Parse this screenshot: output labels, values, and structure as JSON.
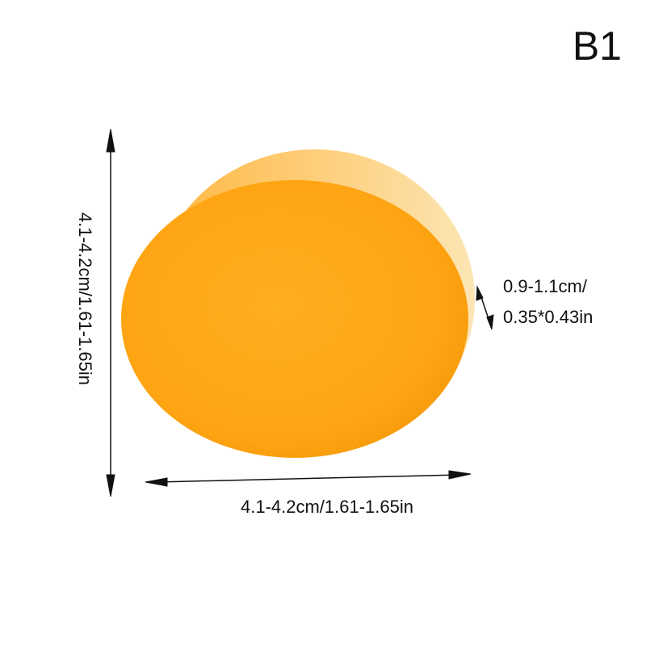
{
  "variant_label": "B1",
  "product": {
    "color": "#FFA81A",
    "shape": "round disc"
  },
  "dimensions": {
    "height_label": "4.1-4.2cm/1.61-1.65in",
    "width_label": "4.1-4.2cm/1.61-1.65in",
    "thickness_line1": "0.9-1.1cm/",
    "thickness_line2": "0.35*0.43in"
  }
}
